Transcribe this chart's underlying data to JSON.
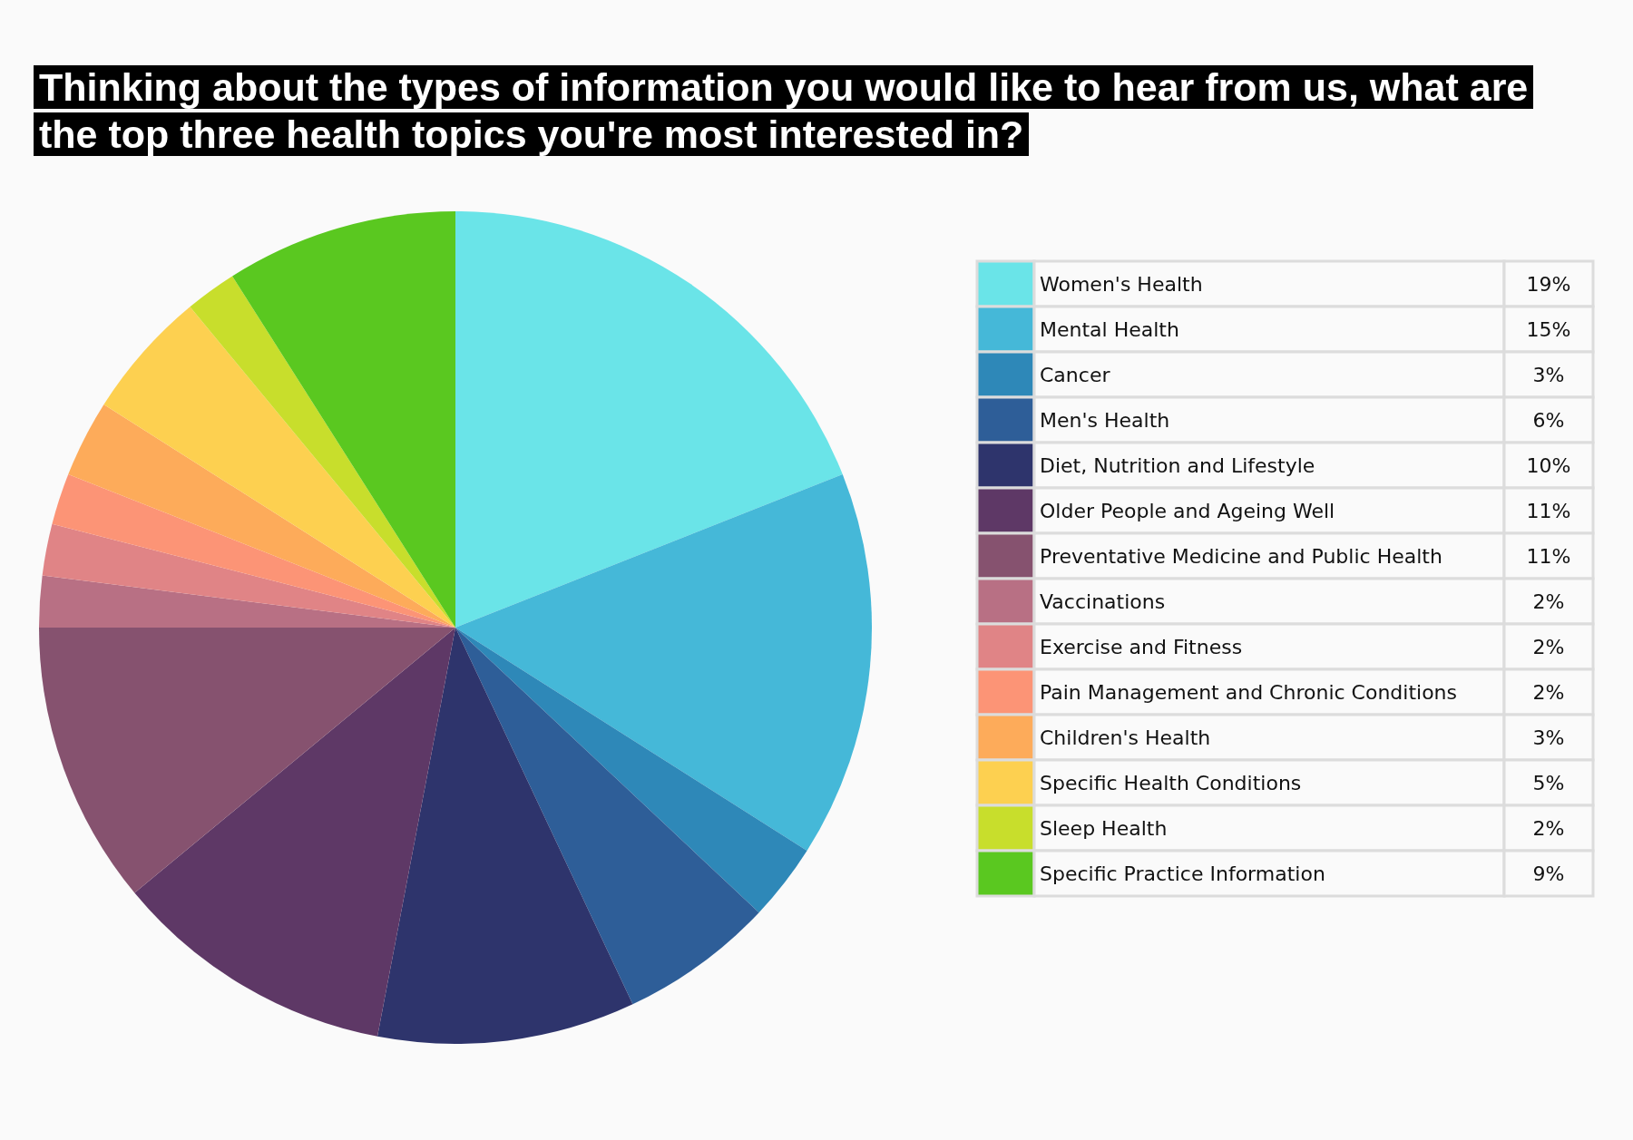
{
  "chart_data": {
    "type": "pie",
    "title": "Thinking about the types of information you would like to hear from us, what are the top three health topics you're most interested in?",
    "categories": [
      "Women's Health",
      "Mental Health",
      "Cancer",
      "Men's Health",
      "Diet, Nutrition and Lifestyle",
      "Older People and Ageing Well",
      "Preventative Medicine and Public Health",
      "Vaccinations",
      "Exercise and Fitness",
      "Pain Management and Chronic Conditions",
      "Children's Health",
      "Specific Health Conditions",
      "Sleep Health",
      "Specific Practice Information"
    ],
    "values": [
      19,
      15,
      3,
      6,
      10,
      11,
      11,
      2,
      2,
      2,
      3,
      5,
      2,
      9
    ],
    "value_labels": [
      "19%",
      "15%",
      "3%",
      "6%",
      "10%",
      "11%",
      "11%",
      "2%",
      "2%",
      "2%",
      "3%",
      "5%",
      "2%",
      "9%"
    ],
    "colors": [
      "#6ae4e8",
      "#45b8d8",
      "#2e88b8",
      "#2e5e98",
      "#2e346c",
      "#5e3866",
      "#86526f",
      "#b87084",
      "#e08486",
      "#fc9476",
      "#fdab5a",
      "#fdd050",
      "#c8de2c",
      "#5ac820"
    ],
    "legend": "right"
  }
}
